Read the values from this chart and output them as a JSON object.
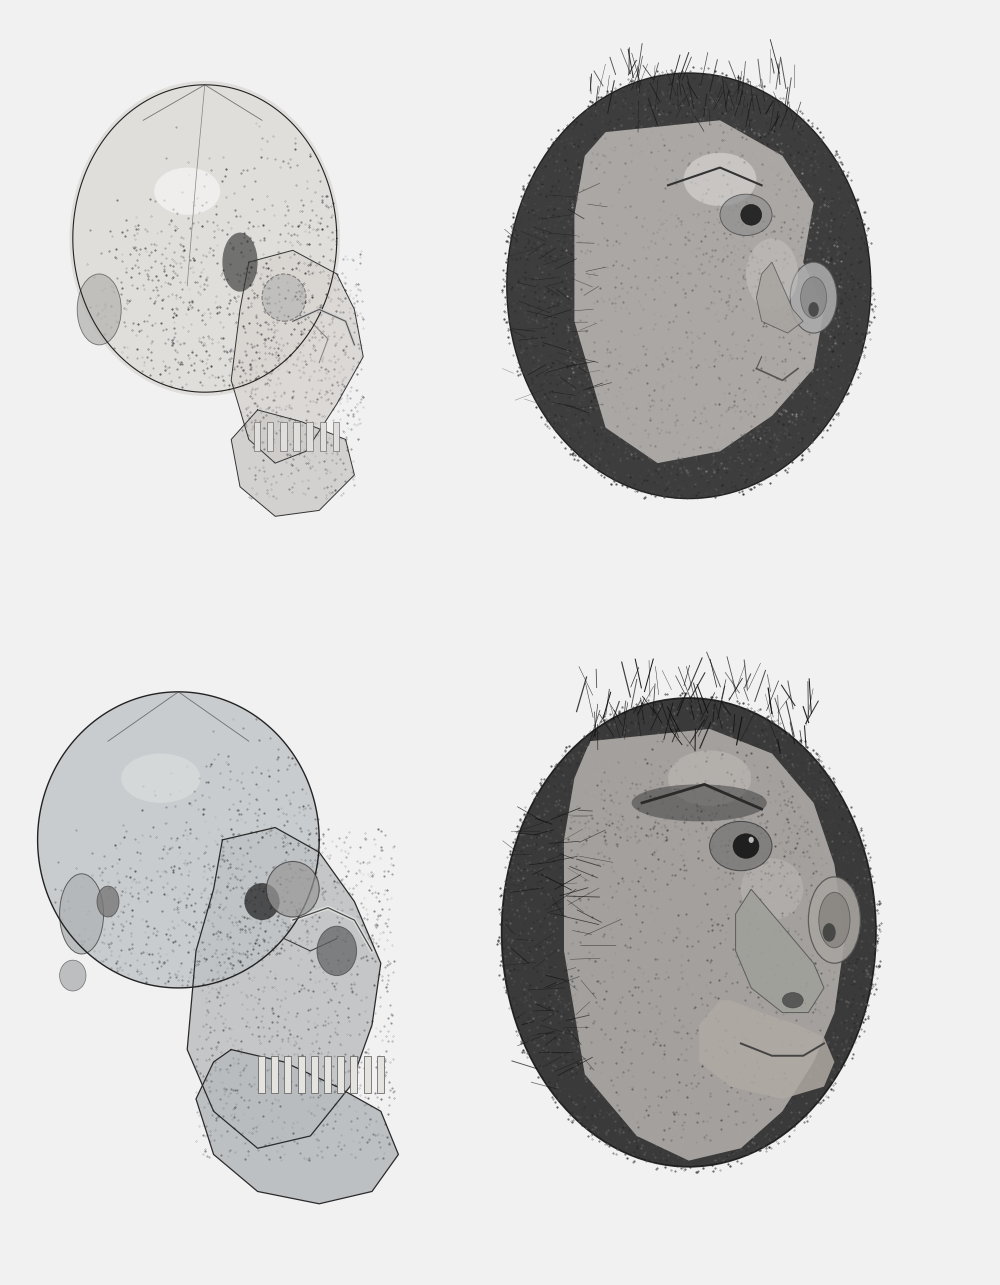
{
  "background_color": "#f2f1f2",
  "figsize": [
    10.0,
    12.85
  ],
  "dpi": 100,
  "skull_base_color": [
    0.72,
    0.74,
    0.75
  ],
  "skull_dark_color": [
    0.35,
    0.38,
    0.4
  ],
  "skull_light_color": [
    0.88,
    0.88,
    0.86
  ],
  "face_base_color": [
    0.65,
    0.65,
    0.65
  ],
  "face_dark_color": [
    0.28,
    0.28,
    0.3
  ],
  "face_light_color": [
    0.82,
    0.8,
    0.8
  ],
  "bg_rgb": [
    0.949,
    0.945,
    0.949
  ]
}
